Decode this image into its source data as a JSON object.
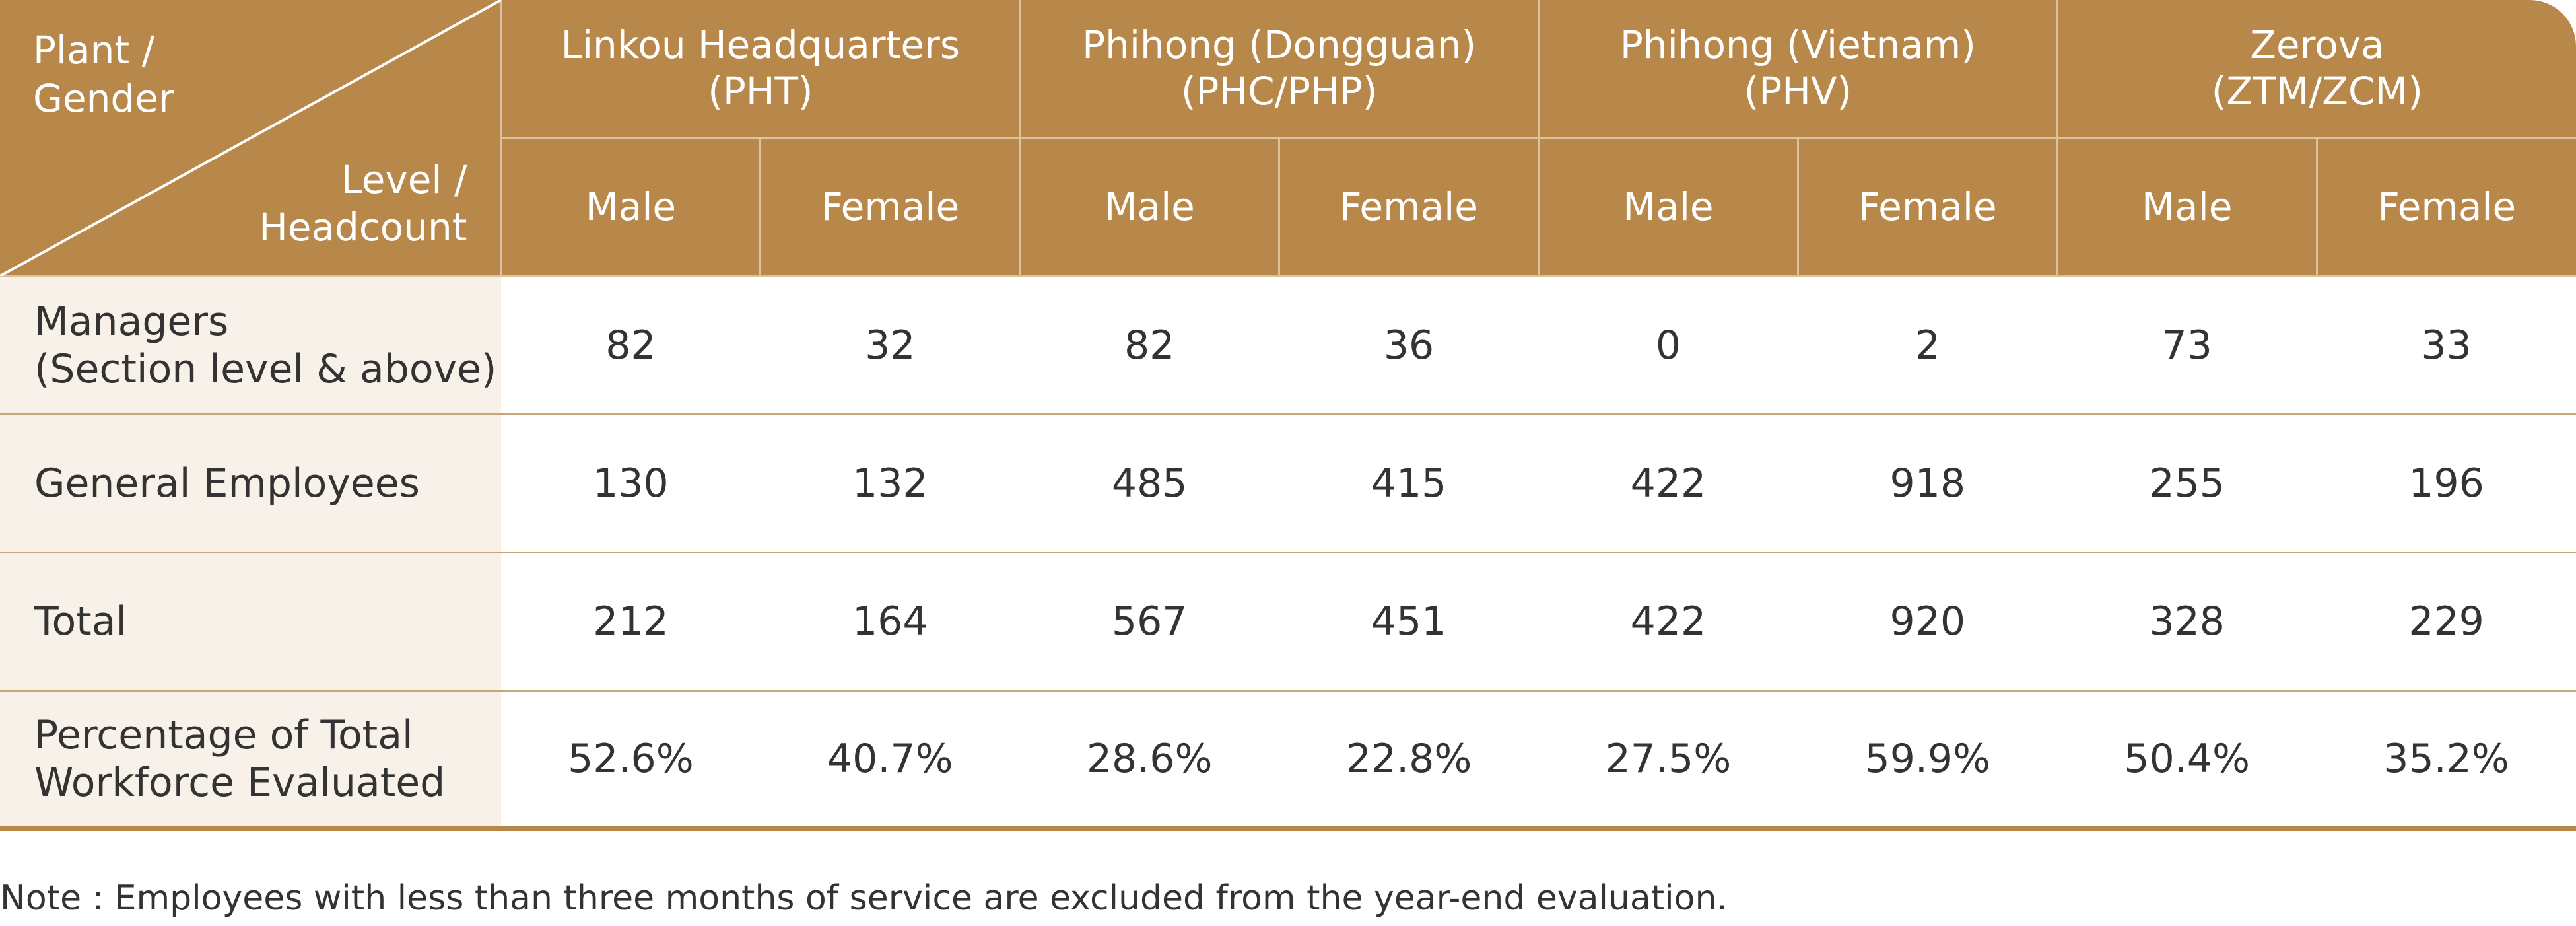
{
  "header": {
    "corner_top": "Plant /\nGender",
    "corner_bottom": "Level /\nHeadcount",
    "plants": [
      "Linkou Headquarters\n(PHT)",
      "Phihong (Dongguan)\n(PHC/PHP)",
      "Phihong (Vietnam)\n(PHV)",
      "Zerova\n(ZTM/ZCM)"
    ],
    "genders": [
      "Male",
      "Female",
      "Male",
      "Female",
      "Male",
      "Female",
      "Male",
      "Female"
    ]
  },
  "table": {
    "rows": [
      {
        "label": "Managers\n(Section level & above)",
        "values": [
          82,
          32,
          82,
          36,
          0,
          2,
          73,
          33
        ]
      },
      {
        "label": "General Employees",
        "values": [
          130,
          132,
          485,
          415,
          422,
          918,
          255,
          196
        ]
      },
      {
        "label": "Total",
        "values": [
          212,
          164,
          567,
          451,
          422,
          920,
          328,
          229
        ]
      },
      {
        "label": "Percentage of Total\nWorkforce Evaluated",
        "values": [
          "52.6%",
          "40.7%",
          "28.6%",
          "22.8%",
          "27.5%",
          "59.9%",
          "50.4%",
          "35.2%"
        ]
      }
    ]
  },
  "note": "Note : Employees with less than three months of service are excluded from the year-end evaluation."
}
